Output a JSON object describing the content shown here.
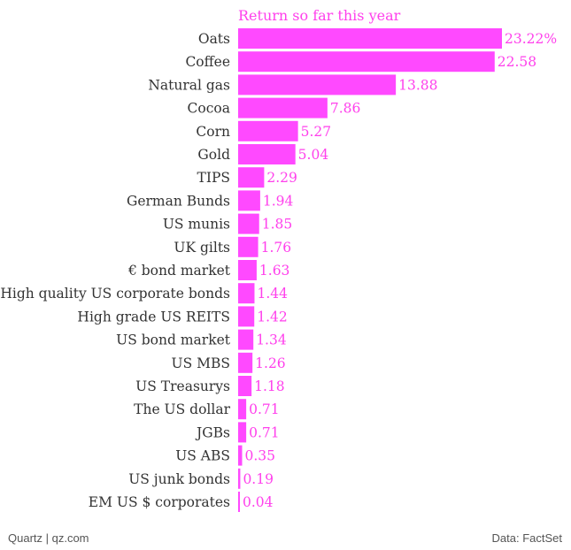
{
  "colors": {
    "bar": "#ff49ff",
    "accent_text": "#ff40ec",
    "label_text": "#333333",
    "footer_text": "#555555"
  },
  "footer": {
    "source": "Quartz | qz.com",
    "credit": "Data: FactSet"
  },
  "chart_data": {
    "type": "bar",
    "orientation": "horizontal",
    "title": "Return so far this year",
    "xlabel": "",
    "ylabel": "",
    "grid": false,
    "legend": "none",
    "xlim": [
      0,
      23.22
    ],
    "value_unit_first_label": "%",
    "categories": [
      "Oats",
      "Coffee",
      "Natural gas",
      "Cocoa",
      "Corn",
      "Gold",
      "TIPS",
      "German Bunds",
      "US munis",
      "UK gilts",
      "€ bond market",
      "High quality US corporate bonds",
      "High grade US REITS",
      "US bond market",
      "US MBS",
      "US Treasurys",
      "The US dollar",
      "JGBs",
      "US ABS",
      "US junk bonds",
      "EM US $ corporates"
    ],
    "values": [
      23.22,
      22.58,
      13.88,
      7.86,
      5.27,
      5.04,
      2.29,
      1.94,
      1.85,
      1.76,
      1.63,
      1.44,
      1.42,
      1.34,
      1.26,
      1.18,
      0.71,
      0.71,
      0.35,
      0.19,
      0.04
    ],
    "value_labels": [
      "23.22%",
      "22.58",
      "13.88",
      "7.86",
      "5.27",
      "5.04",
      "2.29",
      "1.94",
      "1.85",
      "1.76",
      "1.63",
      "1.44",
      "1.42",
      "1.34",
      "1.26",
      "1.18",
      "0.71",
      "0.71",
      "0.35",
      "0.19",
      "0.04"
    ]
  }
}
